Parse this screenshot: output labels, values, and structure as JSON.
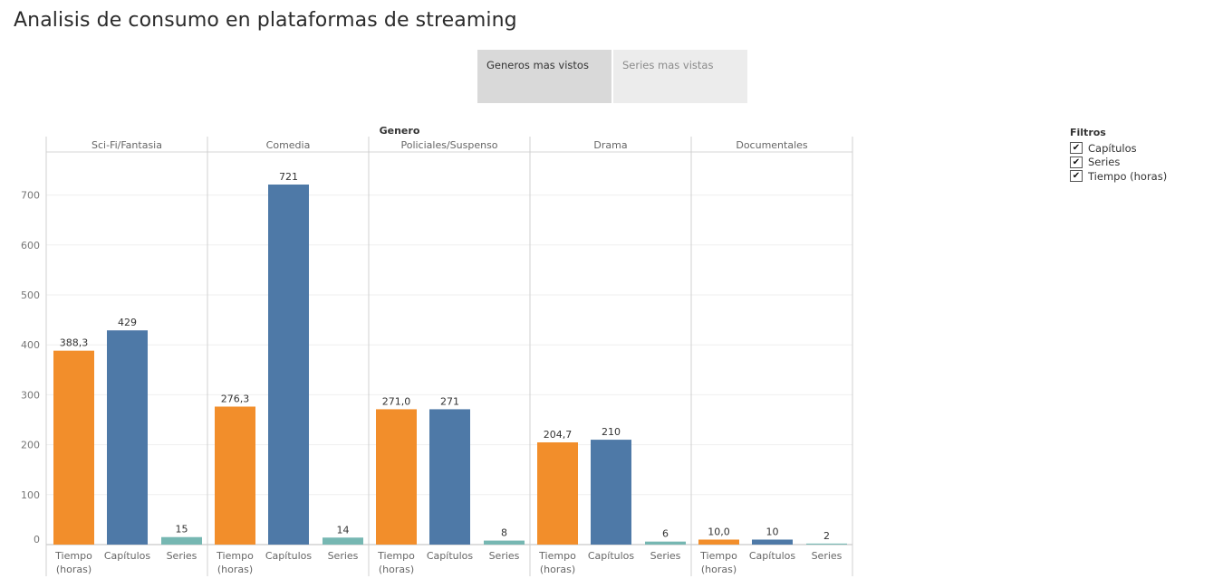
{
  "page": {
    "title": "Analisis de consumo en plataformas de streaming"
  },
  "tabs": [
    {
      "label": "Generos mas vistos",
      "active": true
    },
    {
      "label": "Series mas vistas",
      "active": false
    }
  ],
  "legend": {
    "title": "Filtros",
    "items": [
      {
        "label": "Capítulos",
        "checked": true
      },
      {
        "label": "Series",
        "checked": true
      },
      {
        "label": "Tiempo  (horas)",
        "checked": true
      }
    ],
    "check_glyph": "✔"
  },
  "chart_data": {
    "type": "bar",
    "column_header": "Genero",
    "groups": [
      "Sci-Fi/Fantasia",
      "Comedia",
      "Policiales/Suspenso",
      "Drama",
      "Documentales"
    ],
    "measures": [
      {
        "lines": [
          "Tiempo",
          "(horas)"
        ],
        "color": "#f28e2b"
      },
      {
        "lines": [
          "Capítulos"
        ],
        "color": "#4e79a7"
      },
      {
        "lines": [
          "Series"
        ],
        "color": "#76b7b2"
      }
    ],
    "values": [
      [
        388.3,
        429,
        15
      ],
      [
        276.3,
        721,
        14
      ],
      [
        271.0,
        271,
        8
      ],
      [
        204.7,
        210,
        6
      ],
      [
        10.0,
        10,
        2
      ]
    ],
    "labels": [
      [
        "388,3",
        "429",
        "15"
      ],
      [
        "276,3",
        "721",
        "14"
      ],
      [
        "271,0",
        "271",
        "8"
      ],
      [
        "204,7",
        "210",
        "6"
      ],
      [
        "10,0",
        "10",
        "2"
      ]
    ],
    "y_ticks": [
      0,
      100,
      200,
      300,
      400,
      500,
      600,
      700
    ],
    "ylim": [
      0,
      800
    ],
    "grid": true
  }
}
